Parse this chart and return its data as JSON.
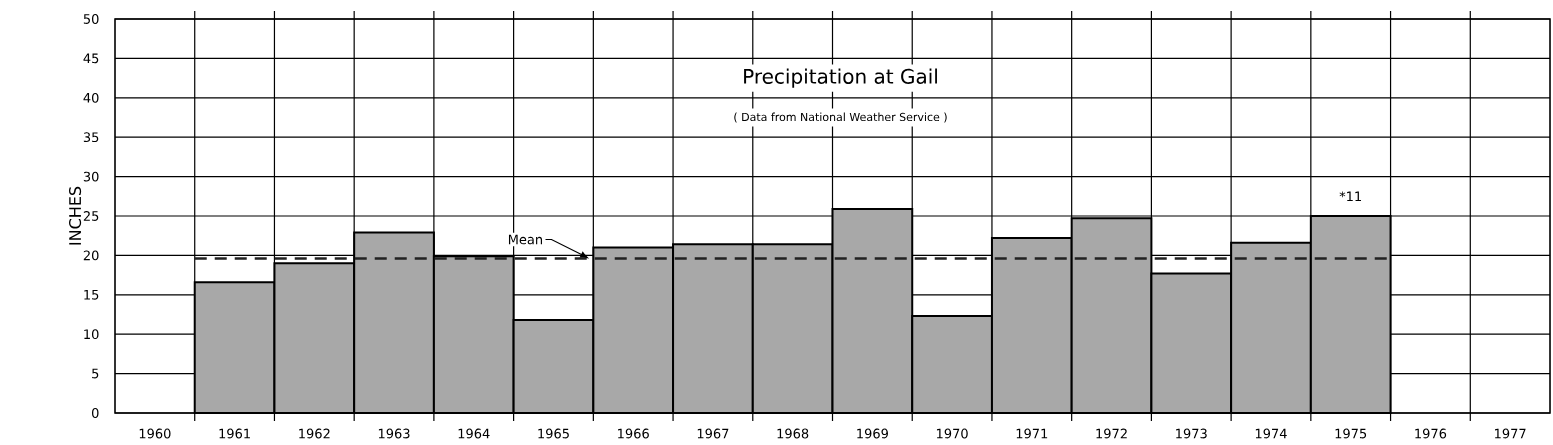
{
  "chart_data": {
    "type": "bar",
    "title": "Precipitation at Gail",
    "subtitle": "( Data from National Weather Service )",
    "ylabel": "INCHES",
    "categories": [
      "1960",
      "1961",
      "1962",
      "1963",
      "1964",
      "1965",
      "1966",
      "1967",
      "1968",
      "1969",
      "1970",
      "1971",
      "1972",
      "1973",
      "1974",
      "1975",
      "1976",
      "1977"
    ],
    "values": [
      null,
      16.6,
      19.0,
      22.9,
      19.9,
      11.8,
      21.0,
      21.4,
      21.4,
      25.9,
      12.3,
      22.2,
      24.7,
      17.7,
      21.6,
      25.0,
      null,
      null
    ],
    "color": "#a8a8a8",
    "ylim": [
      0,
      50
    ],
    "yticks": [
      0,
      5,
      10,
      15,
      20,
      25,
      30,
      35,
      40,
      45,
      50
    ],
    "grid": true,
    "ref_lines": [
      {
        "axis": "y",
        "value": 19.6,
        "label": "Mean",
        "color": "#222222",
        "line_style": "dashed"
      }
    ],
    "annotations": [
      "*11"
    ]
  }
}
